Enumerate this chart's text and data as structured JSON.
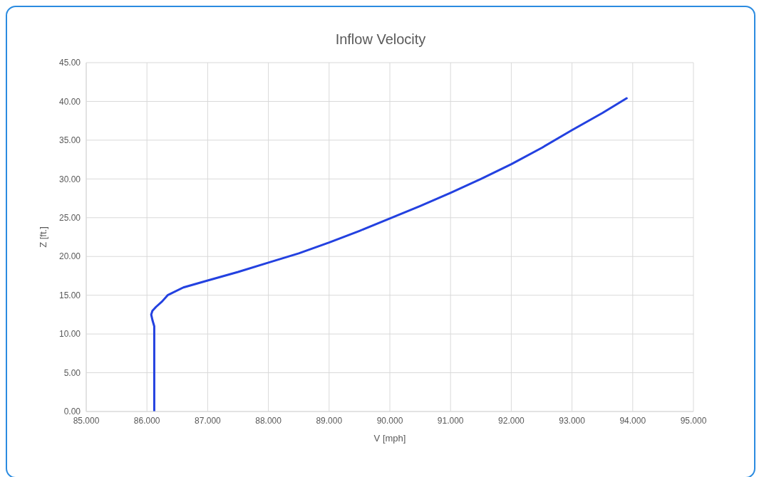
{
  "chart_data": {
    "type": "line",
    "title": "Inflow Velocity",
    "xlabel": "V [mph]",
    "ylabel": "Z [ft.]",
    "series": [
      {
        "color": "#2341e0",
        "x": [
          86.12,
          86.12,
          86.09,
          86.07,
          86.09,
          86.15,
          86.25,
          86.34,
          86.6,
          87.0,
          87.5,
          88.0,
          88.5,
          89.0,
          89.5,
          90.0,
          90.5,
          91.0,
          91.5,
          92.0,
          92.5,
          93.0,
          93.5,
          93.9
        ],
        "values": [
          0,
          11.0,
          11.8,
          12.5,
          13.0,
          13.5,
          14.2,
          15.0,
          16.0,
          16.9,
          18.0,
          19.2,
          20.4,
          21.8,
          23.3,
          24.9,
          26.5,
          28.2,
          30.0,
          31.9,
          34.0,
          36.3,
          38.5,
          40.4
        ]
      }
    ],
    "xlim": [
      85,
      95
    ],
    "xticks": [
      {
        "value": 85,
        "label": "85.000"
      },
      {
        "value": 86,
        "label": "86.000"
      },
      {
        "value": 87,
        "label": "87.000"
      },
      {
        "value": 88,
        "label": "88.000"
      },
      {
        "value": 89,
        "label": "89.000"
      },
      {
        "value": 90,
        "label": "90.000"
      },
      {
        "value": 91,
        "label": "91.000"
      },
      {
        "value": 92,
        "label": "92.000"
      },
      {
        "value": 93,
        "label": "93.000"
      },
      {
        "value": 94,
        "label": "94.000"
      },
      {
        "value": 95,
        "label": "95.000"
      }
    ],
    "ylim": [
      0,
      45
    ],
    "yticks": [
      {
        "value": 0,
        "label": "0.00"
      },
      {
        "value": 5,
        "label": "5.00"
      },
      {
        "value": 10,
        "label": "10.00"
      },
      {
        "value": 15,
        "label": "15.00"
      },
      {
        "value": 20,
        "label": "20.00"
      },
      {
        "value": 25,
        "label": "25.00"
      },
      {
        "value": 30,
        "label": "30.00"
      },
      {
        "value": 35,
        "label": "35.00"
      },
      {
        "value": 40,
        "label": "40.00"
      },
      {
        "value": 45,
        "label": "45.00"
      }
    ],
    "grid": true,
    "marker": "none",
    "line_style": "solid"
  }
}
